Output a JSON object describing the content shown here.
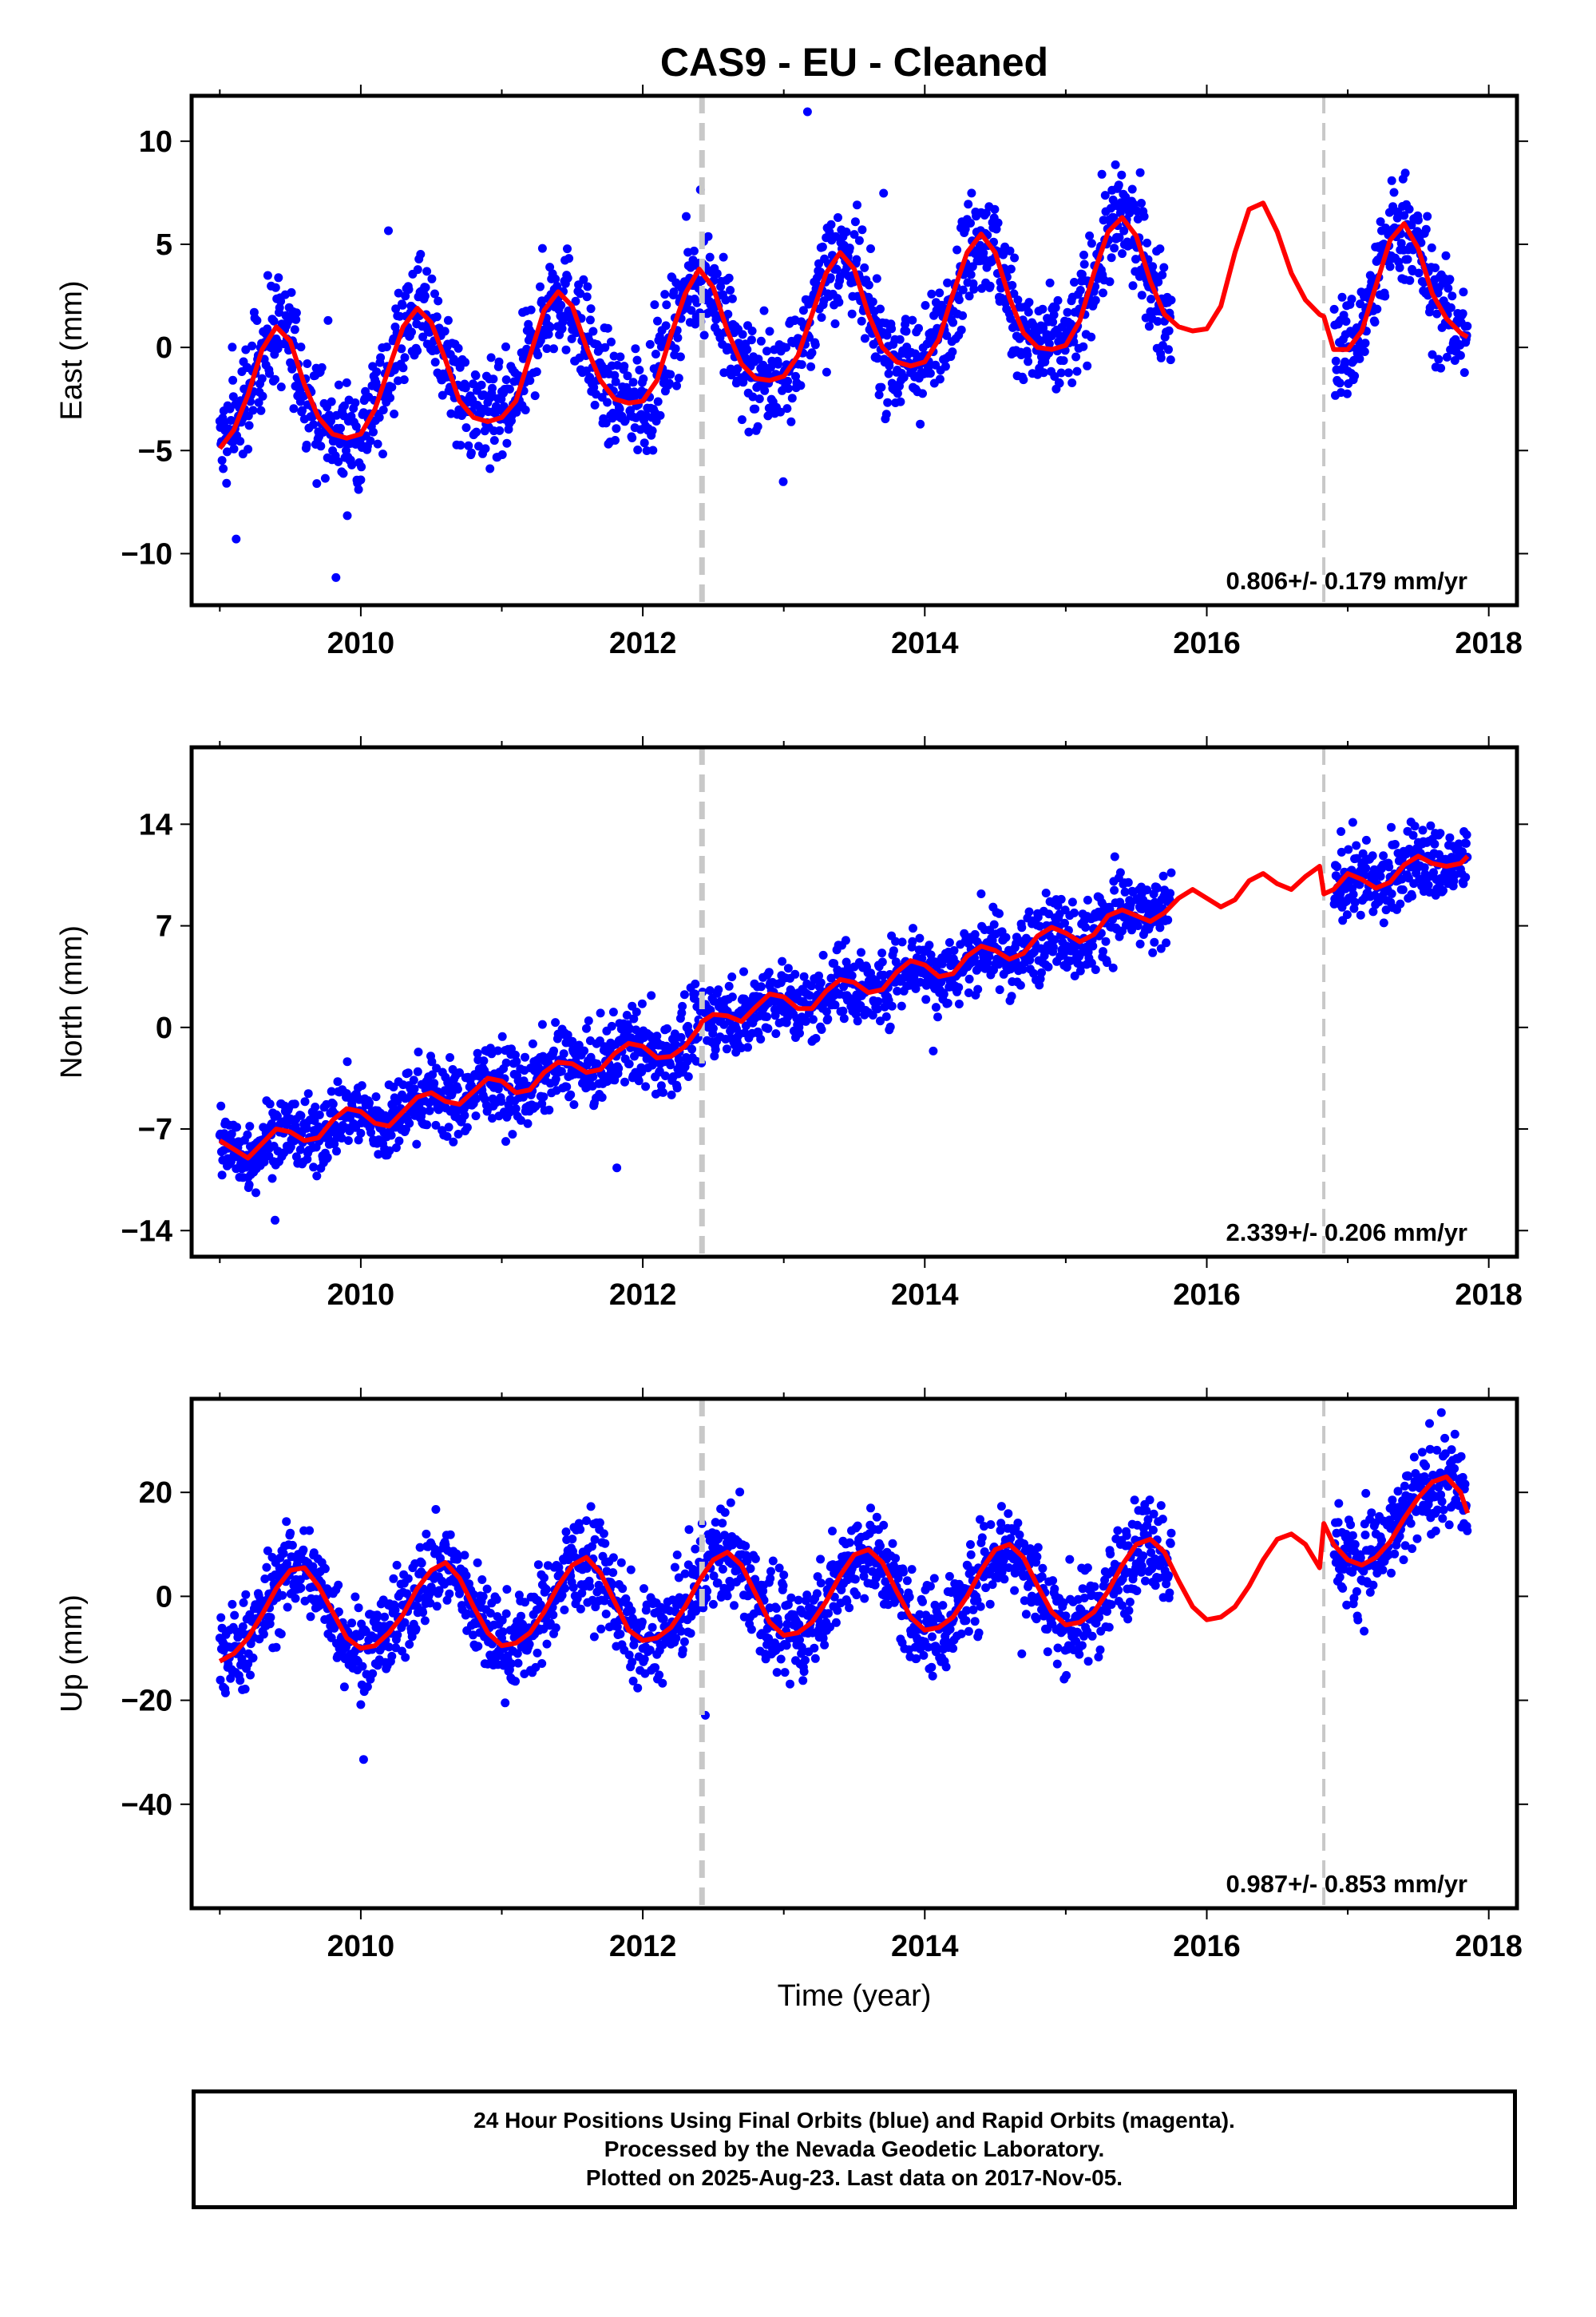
{
  "chart_data": {
    "title": "CAS9  - EU - Cleaned",
    "xlabel": "Time (year)",
    "xticks": [
      2010,
      2012,
      2014,
      2016,
      2018
    ],
    "xlim": [
      2008.8,
      2018.2
    ],
    "steps": [
      2012.42,
      2016.83
    ],
    "last_fit_data_epoch": 2015.75,
    "colors": {
      "data": "#0000ff",
      "model": "#ff0000",
      "step": "#c8c8c8",
      "axis": "#000000"
    },
    "panels": [
      {
        "type": "scatter",
        "ylabel": "East (mm)",
        "ylim": [
          -12.5,
          12.2
        ],
        "yticks": [
          10,
          5,
          0,
          -5,
          -10
        ],
        "rate_text": "0.806+/- 0.179 mm/yr",
        "model": {
          "x": [
            2009.0,
            2009.1,
            2009.2,
            2009.3,
            2009.4,
            2009.5,
            2009.6,
            2009.7,
            2009.8,
            2009.9,
            2010.0,
            2010.1,
            2010.2,
            2010.3,
            2010.4,
            2010.5,
            2010.6,
            2010.7,
            2010.8,
            2010.9,
            2011.0,
            2011.1,
            2011.2,
            2011.3,
            2011.4,
            2011.5,
            2011.6,
            2011.7,
            2011.8,
            2011.9,
            2012.0,
            2012.1,
            2012.2,
            2012.3,
            2012.4,
            2012.5,
            2012.6,
            2012.7,
            2012.8,
            2012.9,
            2013.0,
            2013.1,
            2013.2,
            2013.3,
            2013.4,
            2013.5,
            2013.6,
            2013.7,
            2013.8,
            2013.9,
            2014.0,
            2014.1,
            2014.2,
            2014.3,
            2014.4,
            2014.5,
            2014.6,
            2014.7,
            2014.8,
            2014.9,
            2015.0,
            2015.1,
            2015.2,
            2015.3,
            2015.4,
            2015.5,
            2015.6,
            2015.7,
            2015.8,
            2015.9,
            2016.0,
            2016.1,
            2016.2,
            2016.3,
            2016.4,
            2016.5,
            2016.6,
            2016.7,
            2016.8,
            2016.83,
            2016.9,
            2017.0,
            2017.1,
            2017.2,
            2017.3,
            2017.4,
            2017.5,
            2017.6,
            2017.7,
            2017.8,
            2017.85
          ],
          "y": [
            -4.9,
            -4.0,
            -2.3,
            -0.1,
            1.0,
            0.3,
            -1.8,
            -3.4,
            -4.2,
            -4.4,
            -4.2,
            -3.0,
            -1.0,
            1.0,
            1.9,
            1.2,
            -0.6,
            -2.6,
            -3.4,
            -3.6,
            -3.4,
            -2.6,
            -0.4,
            1.8,
            2.7,
            2.0,
            0.0,
            -1.6,
            -2.5,
            -2.7,
            -2.6,
            -1.6,
            0.6,
            2.6,
            3.8,
            2.9,
            0.8,
            -0.8,
            -1.5,
            -1.6,
            -1.4,
            -0.4,
            1.6,
            3.6,
            4.6,
            3.8,
            1.6,
            0.0,
            -0.7,
            -0.9,
            -0.7,
            0.4,
            2.6,
            4.6,
            5.5,
            4.6,
            2.4,
            0.7,
            0.0,
            -0.1,
            0.1,
            1.3,
            3.6,
            5.6,
            6.3,
            5.4,
            3.2,
            1.6,
            1.0,
            0.8,
            0.9,
            2.0,
            4.6,
            6.7,
            7.0,
            5.6,
            3.6,
            2.3,
            1.6,
            1.5,
            -0.1,
            -0.1,
            0.8,
            3.0,
            5.2,
            6.0,
            4.8,
            2.6,
            1.4,
            0.7,
            0.5
          ],
          "break_after_index": 79
        }
      },
      {
        "type": "scatter",
        "ylabel": "North (mm)",
        "ylim": [
          -15.8,
          19.3
        ],
        "yticks": [
          14,
          7,
          0,
          -7,
          -14
        ],
        "rate_text": "2.339+/- 0.206 mm/yr",
        "model": {
          "x": [
            2009.0,
            2009.1,
            2009.2,
            2009.3,
            2009.4,
            2009.5,
            2009.6,
            2009.7,
            2009.8,
            2009.9,
            2010.0,
            2010.1,
            2010.2,
            2010.3,
            2010.4,
            2010.5,
            2010.6,
            2010.7,
            2010.8,
            2010.9,
            2011.0,
            2011.1,
            2011.2,
            2011.3,
            2011.4,
            2011.5,
            2011.6,
            2011.7,
            2011.8,
            2011.9,
            2012.0,
            2012.1,
            2012.2,
            2012.3,
            2012.4,
            2012.42,
            2012.5,
            2012.6,
            2012.7,
            2012.8,
            2012.9,
            2013.0,
            2013.1,
            2013.2,
            2013.3,
            2013.4,
            2013.5,
            2013.6,
            2013.7,
            2013.8,
            2013.9,
            2014.0,
            2014.1,
            2014.2,
            2014.3,
            2014.4,
            2014.5,
            2014.6,
            2014.7,
            2014.8,
            2014.9,
            2015.0,
            2015.1,
            2015.2,
            2015.3,
            2015.4,
            2015.5,
            2015.6,
            2015.7,
            2015.8,
            2015.9,
            2016.0,
            2016.1,
            2016.2,
            2016.3,
            2016.4,
            2016.5,
            2016.6,
            2016.7,
            2016.8,
            2016.83,
            2016.9,
            2017.0,
            2017.1,
            2017.2,
            2017.3,
            2017.4,
            2017.5,
            2017.6,
            2017.7,
            2017.8,
            2017.85
          ],
          "y": [
            -7.8,
            -8.4,
            -9.0,
            -8.0,
            -7.0,
            -7.2,
            -7.8,
            -7.6,
            -6.4,
            -5.6,
            -5.8,
            -6.6,
            -6.8,
            -5.8,
            -4.8,
            -4.5,
            -5.1,
            -5.3,
            -4.4,
            -3.5,
            -3.7,
            -4.5,
            -4.3,
            -3.1,
            -2.4,
            -2.5,
            -3.1,
            -2.9,
            -1.8,
            -1.1,
            -1.3,
            -2.1,
            -2.0,
            -1.3,
            0.0,
            0.4,
            0.9,
            0.8,
            0.4,
            1.4,
            2.3,
            2.1,
            1.3,
            1.3,
            2.5,
            3.3,
            3.1,
            2.4,
            2.6,
            3.8,
            4.6,
            4.3,
            3.5,
            3.7,
            4.9,
            5.6,
            5.3,
            4.7,
            5.1,
            6.3,
            6.9,
            6.5,
            5.9,
            6.4,
            7.7,
            8.1,
            7.7,
            7.3,
            7.9,
            8.9,
            9.5,
            8.9,
            8.3,
            8.8,
            10.1,
            10.6,
            9.9,
            9.5,
            10.4,
            11.1,
            9.2,
            9.5,
            10.6,
            10.2,
            9.6,
            10.0,
            11.2,
            11.8,
            11.3,
            11.1,
            11.3,
            11.8
          ],
          "break_after_index": 79
        }
      },
      {
        "type": "scatter",
        "ylabel": "Up (mm)",
        "ylim": [
          -60,
          38
        ],
        "yticks": [
          20,
          0,
          -20,
          -40
        ],
        "rate_text": "0.987+/- 0.853 mm/yr",
        "model": {
          "x": [
            2009.0,
            2009.1,
            2009.2,
            2009.3,
            2009.4,
            2009.5,
            2009.6,
            2009.7,
            2009.8,
            2009.9,
            2010.0,
            2010.1,
            2010.2,
            2010.3,
            2010.4,
            2010.5,
            2010.6,
            2010.7,
            2010.8,
            2010.9,
            2011.0,
            2011.1,
            2011.2,
            2011.3,
            2011.4,
            2011.5,
            2011.6,
            2011.7,
            2011.8,
            2011.9,
            2012.0,
            2012.1,
            2012.2,
            2012.3,
            2012.4,
            2012.5,
            2012.6,
            2012.7,
            2012.8,
            2012.9,
            2013.0,
            2013.1,
            2013.2,
            2013.3,
            2013.4,
            2013.5,
            2013.6,
            2013.7,
            2013.8,
            2013.9,
            2014.0,
            2014.1,
            2014.2,
            2014.3,
            2014.4,
            2014.5,
            2014.6,
            2014.7,
            2014.8,
            2014.9,
            2015.0,
            2015.1,
            2015.2,
            2015.3,
            2015.4,
            2015.5,
            2015.6,
            2015.7,
            2015.8,
            2015.9,
            2016.0,
            2016.1,
            2016.2,
            2016.3,
            2016.4,
            2016.5,
            2016.6,
            2016.7,
            2016.8,
            2016.83,
            2016.9,
            2017.0,
            2017.1,
            2017.2,
            2017.3,
            2017.4,
            2017.5,
            2017.6,
            2017.7,
            2017.8,
            2017.85
          ],
          "y": [
            -12.5,
            -11.0,
            -8.0,
            -3.5,
            1.5,
            5.0,
            5.5,
            2.0,
            -3.0,
            -8.0,
            -10.0,
            -9.5,
            -7.0,
            -3.5,
            1.5,
            5.0,
            6.5,
            3.5,
            -2.0,
            -7.0,
            -9.5,
            -9.0,
            -7.0,
            -3.0,
            2.0,
            6.0,
            7.5,
            4.5,
            -1.0,
            -6.5,
            -8.5,
            -8.0,
            -6.0,
            -2.0,
            3.0,
            7.0,
            8.5,
            6.0,
            0.5,
            -5.0,
            -7.5,
            -7.0,
            -5.0,
            -1.0,
            4.0,
            8.0,
            9.0,
            6.5,
            1.0,
            -4.0,
            -6.5,
            -6.0,
            -4.0,
            0.0,
            5.0,
            9.0,
            10.0,
            7.5,
            2.0,
            -3.0,
            -5.5,
            -5.0,
            -3.0,
            1.0,
            6.0,
            10.0,
            11.0,
            8.5,
            3.0,
            -2.0,
            -4.5,
            -4.0,
            -2.0,
            2.0,
            7.0,
            11.0,
            12.0,
            10.0,
            5.5,
            14.0,
            10.0,
            7.0,
            6.0,
            7.5,
            10.5,
            15.0,
            19.0,
            22.0,
            23.0,
            20.0,
            16.0
          ],
          "break_after_index": 78
        }
      }
    ]
  },
  "footer": {
    "line1": "24 Hour Positions Using Final Orbits (blue) and Rapid Orbits (magenta).",
    "line2": "Processed by the Nevada Geodetic Laboratory.",
    "line3": "Plotted on 2025-Aug-23. Last data on 2017-Nov-05."
  }
}
